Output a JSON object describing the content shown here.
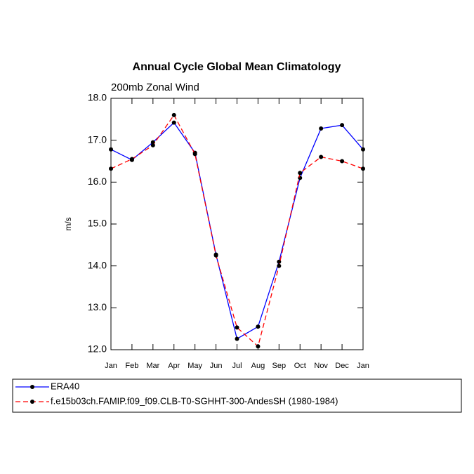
{
  "chart_data": {
    "type": "line",
    "title": "Annual Cycle Global Mean Climatology",
    "subtitle": "200mb Zonal Wind",
    "y_label": "m/s",
    "categories": [
      "Jan",
      "Feb",
      "Mar",
      "Apr",
      "May",
      "Jun",
      "Jul",
      "Aug",
      "Sep",
      "Oct",
      "Nov",
      "Dec",
      "Jan"
    ],
    "series": [
      {
        "name": "ERA40",
        "color": "#0000ff",
        "dash": false,
        "values": [
          16.78,
          16.53,
          16.95,
          17.42,
          16.7,
          14.27,
          12.26,
          12.55,
          14.1,
          16.1,
          17.28,
          17.36,
          16.78
        ]
      },
      {
        "name": "f.e15b03ch.FAMIP.f09_f09.CLB-T0-SGHHT-300-AndesSH (1980-1984)",
        "color": "#ff0000",
        "dash": true,
        "values": [
          16.32,
          16.55,
          16.88,
          17.6,
          16.67,
          14.25,
          12.53,
          12.08,
          14.0,
          16.22,
          16.6,
          16.5,
          16.32
        ]
      }
    ],
    "ylim": [
      12,
      18
    ],
    "yticks": [
      {
        "value": 12,
        "label": "12.0"
      },
      {
        "value": 13,
        "label": "13.0"
      },
      {
        "value": 14,
        "label": "14.0"
      },
      {
        "value": 15,
        "label": "15.0"
      },
      {
        "value": 16,
        "label": "16.0"
      },
      {
        "value": 17,
        "label": "17.0"
      },
      {
        "value": 18,
        "label": "18.0"
      }
    ],
    "grid": false
  }
}
